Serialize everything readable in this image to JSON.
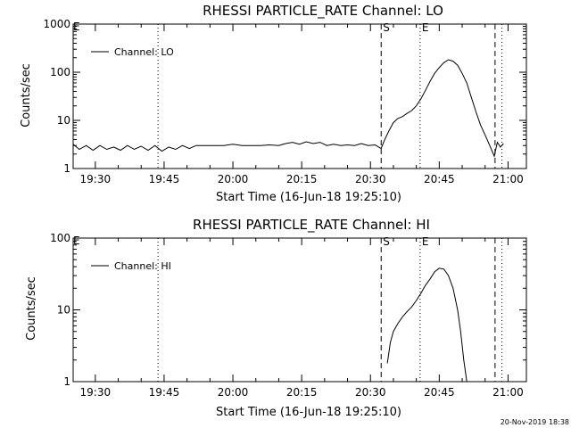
{
  "footer": {
    "timestamp": "20-Nov-2019 18:38"
  },
  "chart_data": [
    {
      "type": "line",
      "title": "RHESSI PARTICLE_RATE Channel: LO",
      "xlabel": "Start Time (16-Jun-18 19:25:10)",
      "ylabel": "Counts/sec",
      "y_scale": "log",
      "ylim": [
        1,
        1000
      ],
      "xlim": [
        "19:25:10",
        "21:04:00"
      ],
      "x_ticks": [
        "19:30",
        "19:45",
        "20:00",
        "20:15",
        "20:30",
        "20:45",
        "21:00"
      ],
      "y_ticks": [
        "1",
        "10",
        "100",
        "1000"
      ],
      "legend": {
        "position": "top-left",
        "entries": [
          "Channel: LO"
        ]
      },
      "markers": [
        {
          "label": "S",
          "x": "20:32:20",
          "style": "dashed"
        },
        {
          "label": "E",
          "x": "20:40:50",
          "style": "dotted"
        },
        {
          "label": "",
          "x": "19:43:40",
          "style": "dotted"
        },
        {
          "label": "",
          "x": "20:57:10",
          "style": "dashed"
        },
        {
          "label": "",
          "x": "20:58:40",
          "style": "dotted"
        }
      ],
      "corner_label": "E",
      "series": [
        {
          "name": "Channel: LO",
          "x": [
            "19:25:10",
            "19:26:30",
            "19:28:00",
            "19:29:30",
            "19:31:00",
            "19:32:30",
            "19:34:00",
            "19:35:30",
            "19:37:00",
            "19:38:30",
            "19:40:00",
            "19:41:30",
            "19:43:00",
            "19:44:30",
            "19:46:00",
            "19:47:30",
            "19:49:00",
            "19:50:30",
            "19:52:00",
            "19:53:30",
            "19:55:00",
            "19:56:30",
            "19:58:00",
            "20:00:00",
            "20:02:00",
            "20:04:00",
            "20:06:00",
            "20:08:00",
            "20:10:00",
            "20:11:30",
            "20:13:00",
            "20:14:30",
            "20:16:00",
            "20:17:30",
            "20:19:00",
            "20:20:30",
            "20:22:00",
            "20:23:30",
            "20:25:00",
            "20:26:30",
            "20:28:00",
            "20:29:30",
            "20:31:00",
            "20:32:20",
            "20:33:00",
            "20:34:00",
            "20:35:00",
            "20:36:00",
            "20:37:00",
            "20:38:00",
            "20:39:00",
            "20:40:00",
            "20:41:00",
            "20:42:00",
            "20:43:00",
            "20:44:00",
            "20:45:00",
            "20:46:00",
            "20:47:00",
            "20:48:00",
            "20:49:00",
            "20:50:00",
            "20:51:00",
            "20:52:00",
            "20:53:00",
            "20:54:00",
            "20:55:00",
            "20:56:00",
            "20:57:00",
            "20:57:40",
            "20:58:20",
            "20:59:00"
          ],
          "values": [
            3.2,
            2.5,
            3,
            2.4,
            3,
            2.5,
            2.8,
            2.4,
            3,
            2.5,
            2.9,
            2.4,
            3,
            2.3,
            2.8,
            2.5,
            3,
            2.6,
            3,
            3,
            3,
            3,
            3,
            3.2,
            3,
            3,
            3,
            3.1,
            3,
            3.3,
            3.5,
            3.2,
            3.6,
            3.3,
            3.5,
            3,
            3.2,
            3,
            3.1,
            3,
            3.3,
            3,
            3.1,
            2.6,
            3.8,
            6,
            9,
            11,
            12,
            14,
            16,
            20,
            28,
            42,
            65,
            95,
            125,
            158,
            182,
            170,
            140,
            95,
            60,
            30,
            15,
            8,
            5,
            3,
            1.8,
            3.5,
            2.8,
            3.3
          ]
        }
      ]
    },
    {
      "type": "line",
      "title": "RHESSI PARTICLE_RATE Channel: HI",
      "xlabel": "Start Time (16-Jun-18 19:25:10)",
      "ylabel": "Counts/sec",
      "y_scale": "log",
      "ylim": [
        1,
        100
      ],
      "xlim": [
        "19:25:10",
        "21:04:00"
      ],
      "x_ticks": [
        "19:30",
        "19:45",
        "20:00",
        "20:15",
        "20:30",
        "20:45",
        "21:00"
      ],
      "y_ticks": [
        "1",
        "10",
        "100"
      ],
      "legend": {
        "position": "top-left",
        "entries": [
          "Channel: HI"
        ]
      },
      "markers": [
        {
          "label": "S",
          "x": "20:32:20",
          "style": "dashed"
        },
        {
          "label": "E",
          "x": "20:40:50",
          "style": "dotted"
        },
        {
          "label": "",
          "x": "19:43:40",
          "style": "dotted"
        },
        {
          "label": "",
          "x": "20:57:10",
          "style": "dashed"
        },
        {
          "label": "",
          "x": "20:58:40",
          "style": "dotted"
        }
      ],
      "corner_label": "E",
      "series": [
        {
          "name": "Channel: HI",
          "x": [
            "20:33:40",
            "20:34:00",
            "20:34:20",
            "20:35:00",
            "20:36:00",
            "20:37:00",
            "20:38:00",
            "20:39:00",
            "20:40:00",
            "20:41:00",
            "20:42:00",
            "20:43:00",
            "20:44:00",
            "20:45:00",
            "20:46:00",
            "20:47:00",
            "20:48:00",
            "20:49:00",
            "20:49:40",
            "20:50:20",
            "20:51:00"
          ],
          "values": [
            1.8,
            2.5,
            3.5,
            5,
            6.5,
            8,
            9.5,
            11,
            13.5,
            17,
            22,
            27,
            34,
            38,
            37,
            30,
            20,
            10,
            5,
            2,
            1
          ]
        }
      ]
    }
  ]
}
